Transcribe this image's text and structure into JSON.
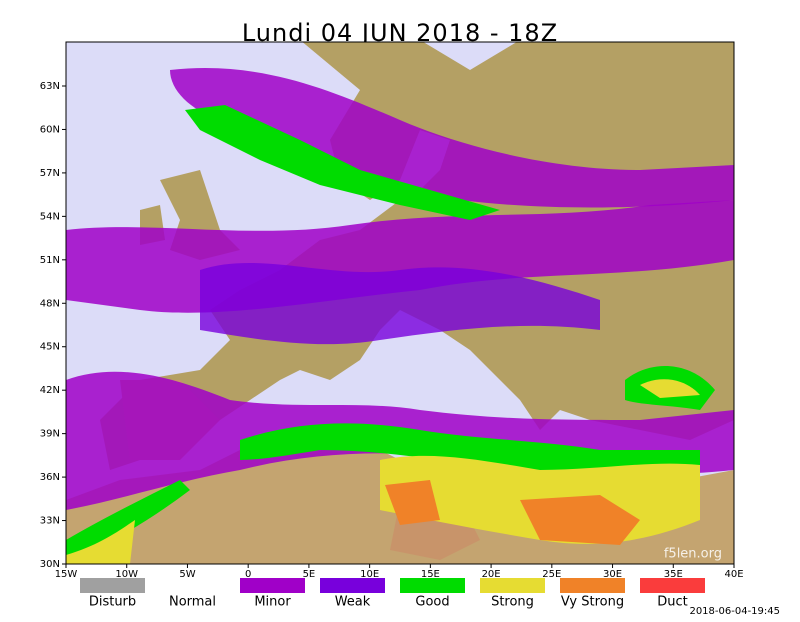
{
  "title": "Lundi 04 JUN 2018 - 18Z",
  "lat_labels": [
    "30N",
    "33N",
    "36N",
    "39N",
    "42N",
    "45N",
    "48N",
    "51N",
    "54N",
    "57N",
    "60N",
    "63N"
  ],
  "lon_labels": [
    "15W",
    "10W",
    "5W",
    "0",
    "5E",
    "10E",
    "15E",
    "20E",
    "25E",
    "30E",
    "35E",
    "40E"
  ],
  "legend": [
    {
      "label": "Disturb",
      "color": "#a0a0a0"
    },
    {
      "label": "Normal",
      "color": "#ffffff"
    },
    {
      "label": "Minor",
      "color": "#a000c8"
    },
    {
      "label": "Weak",
      "color": "#7800dc"
    },
    {
      "label": "Good",
      "color": "#00dc00"
    },
    {
      "label": "Strong",
      "color": "#e6dc32"
    },
    {
      "label": "Vy Strong",
      "color": "#f08228"
    },
    {
      "label": "Duct",
      "color": "#fa3c3c"
    }
  ],
  "watermark": "f5len.org",
  "timestamp": "2018-06-04-19:45"
}
